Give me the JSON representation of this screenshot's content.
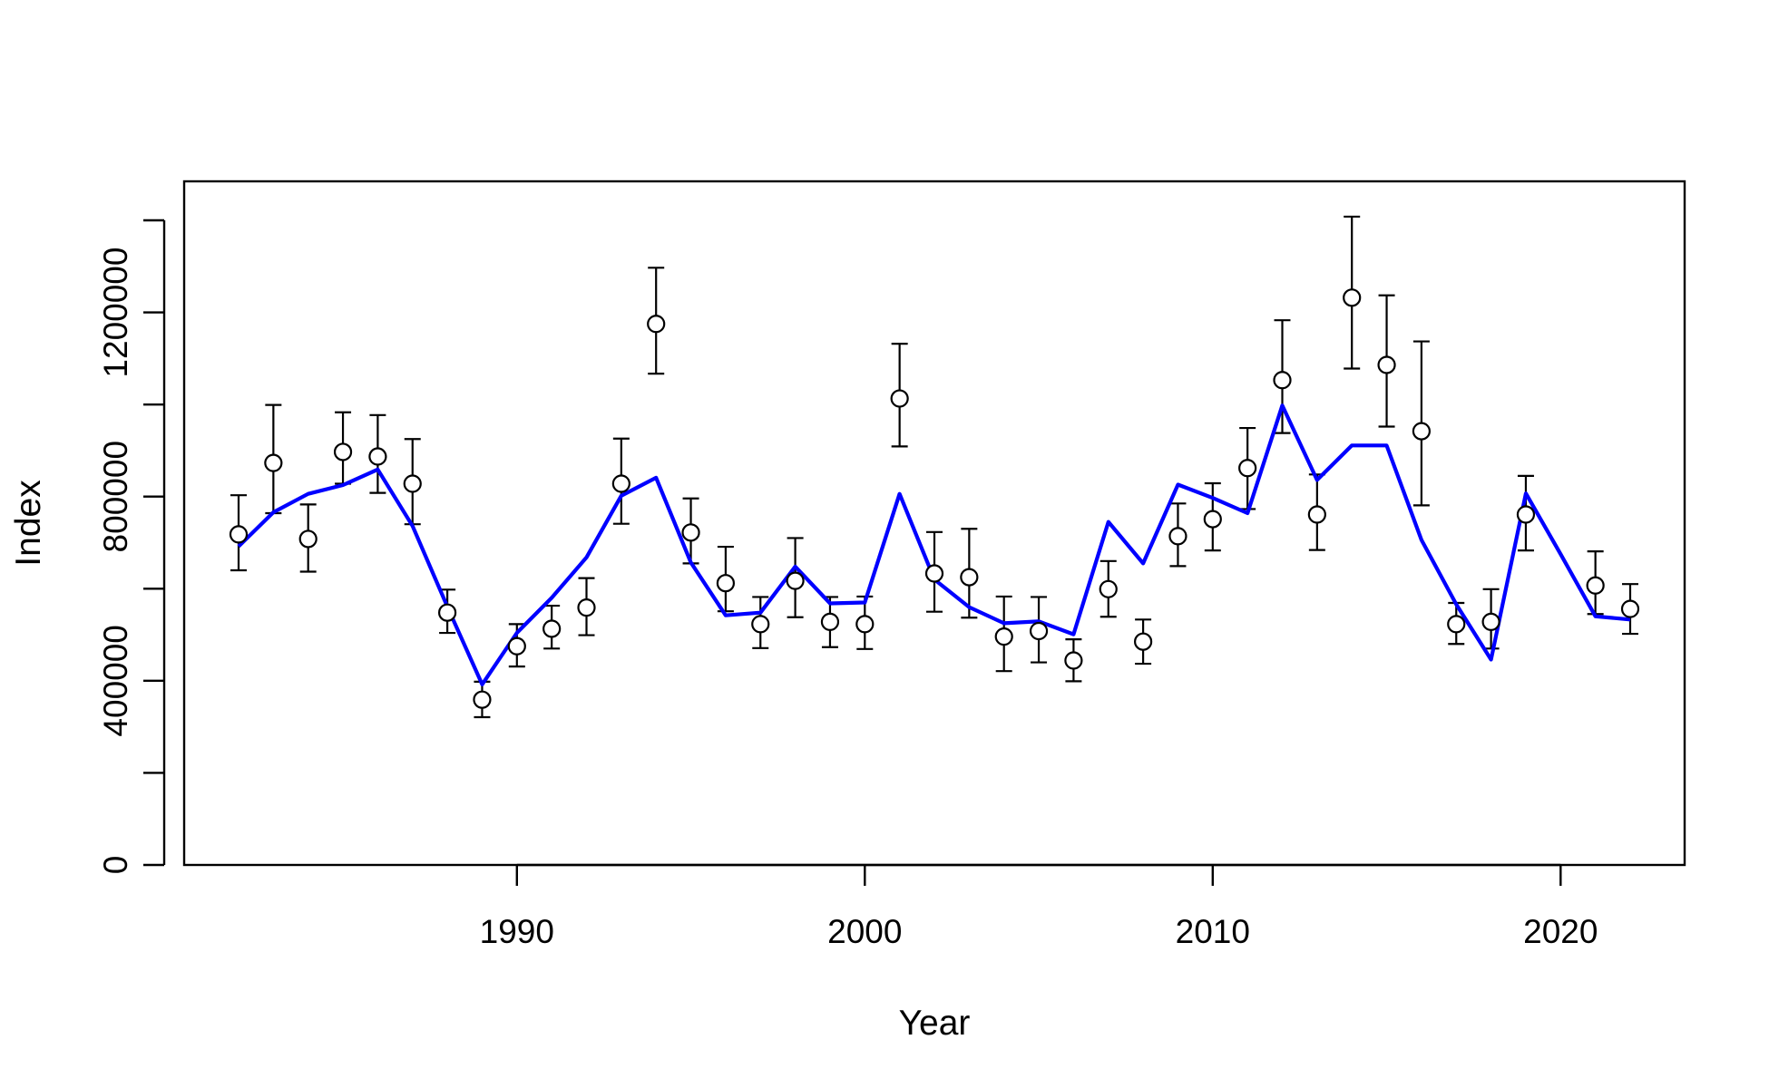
{
  "chart_data": {
    "type": "scatter",
    "title": "",
    "xlabel": "Year",
    "ylabel": "Index",
    "xlim": [
      1981,
      2024
    ],
    "ylim": [
      0,
      1400000
    ],
    "x_ticks": [
      1990,
      2000,
      2010,
      2020
    ],
    "y_ticks": [
      0,
      200000,
      400000,
      600000,
      800000,
      1000000,
      1200000,
      1400000
    ],
    "y_tick_labels": [
      "0",
      "",
      "400000",
      "",
      "800000",
      "",
      "1200000",
      ""
    ],
    "grid": false,
    "legend": "none",
    "colors": {
      "observed": "#000000",
      "fitted": "#0000ff"
    },
    "series": [
      {
        "kind": "points-with-error-bars",
        "x": [
          1982,
          1983,
          1984,
          1985,
          1986,
          1987,
          1988,
          1989,
          1990,
          1991,
          1992,
          1993,
          1994,
          1995,
          1996,
          1997,
          1998,
          1999,
          2000,
          2001,
          2002,
          2003,
          2004,
          2005,
          2006,
          2007,
          2008,
          2009,
          2010,
          2011,
          2012,
          2013,
          2014,
          2015,
          2016,
          2017,
          2018,
          2019,
          2021,
          2022
        ],
        "y": [
          718000,
          873000,
          708000,
          897000,
          887000,
          828000,
          548000,
          359000,
          475000,
          513000,
          559000,
          828000,
          1175000,
          722000,
          612000,
          523000,
          617000,
          528000,
          523000,
          1013000,
          633000,
          625000,
          496000,
          508000,
          444000,
          599000,
          485000,
          714000,
          751000,
          862000,
          1053000,
          761000,
          1232000,
          1086000,
          942000,
          523000,
          528000,
          761000,
          607000,
          556000
        ],
        "lower": [
          640000,
          764000,
          637000,
          828000,
          808000,
          740000,
          504000,
          321000,
          431000,
          470000,
          499000,
          741000,
          1067000,
          655000,
          551000,
          471000,
          538000,
          473000,
          469000,
          909000,
          550000,
          537000,
          421000,
          440000,
          399000,
          539000,
          437000,
          649000,
          683000,
          773000,
          938000,
          684000,
          1078000,
          952000,
          781000,
          480000,
          470000,
          683000,
          545000,
          502000
        ],
        "upper": [
          803000,
          999000,
          783000,
          983000,
          977000,
          925000,
          598000,
          398000,
          523000,
          563000,
          623000,
          926000,
          1297000,
          796000,
          691000,
          582000,
          710000,
          582000,
          583000,
          1132000,
          723000,
          730000,
          583000,
          582000,
          490000,
          660000,
          533000,
          785000,
          829000,
          949000,
          1183000,
          848000,
          1408000,
          1237000,
          1137000,
          569000,
          599000,
          845000,
          681000,
          610000
        ]
      },
      {
        "kind": "fitted-line",
        "x": [
          1982,
          1983,
          1984,
          1985,
          1986,
          1987,
          1988,
          1989,
          1990,
          1991,
          1992,
          1993,
          1994,
          1995,
          1996,
          1997,
          1998,
          1999,
          2000,
          2001,
          2002,
          2003,
          2004,
          2005,
          2006,
          2007,
          2008,
          2009,
          2010,
          2011,
          2012,
          2013,
          2014,
          2015,
          2016,
          2017,
          2018,
          2019,
          2020,
          2021,
          2022
        ],
        "y": [
          692000,
          766000,
          806000,
          825000,
          859000,
          736000,
          561000,
          392000,
          504000,
          580000,
          668000,
          802000,
          841000,
          657000,
          542000,
          548000,
          648000,
          568000,
          570000,
          806000,
          620000,
          560000,
          525000,
          529000,
          501000,
          745000,
          655000,
          826000,
          797000,
          764000,
          998000,
          836000,
          911000,
          911000,
          706000,
          566000,
          446000,
          807000,
          675000,
          540000,
          533000
        ]
      }
    ]
  }
}
